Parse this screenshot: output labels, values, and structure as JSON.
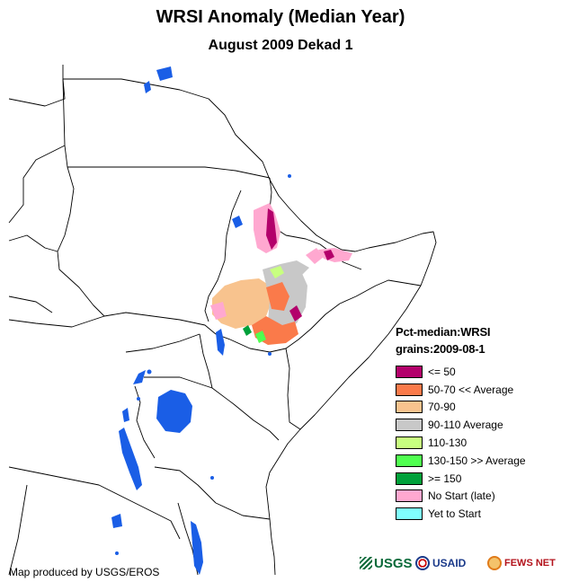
{
  "header": {
    "title": "WRSI Anomaly (Median Year)",
    "subtitle": "August 2009 Dekad 1"
  },
  "legend": {
    "title_line1": "Pct-median:WRSI",
    "title_line2": "grains:2009-08-1",
    "items": [
      {
        "label": "<= 50",
        "color": "#b3006b"
      },
      {
        "label": "50-70 << Average",
        "color": "#fa7a4a"
      },
      {
        "label": "70-90",
        "color": "#f8c38e"
      },
      {
        "label": "90-110 Average",
        "color": "#c8c8c8"
      },
      {
        "label": "110-130",
        "color": "#c8ff80"
      },
      {
        "label": "130-150 >> Average",
        "color": "#50ff50"
      },
      {
        "label": ">= 150",
        "color": "#00a03a"
      },
      {
        "label": "No Start (late)",
        "color": "#ffa8d0"
      },
      {
        "label": "Yet to Start",
        "color": "#80ffff"
      }
    ]
  },
  "credit": "Map produced by USGS/EROS",
  "logos": {
    "usgs": "USGS",
    "usaid": "USAID",
    "fews": "FEWS NET"
  },
  "colors": {
    "water": "#1a5ee6",
    "border": "#000000"
  }
}
